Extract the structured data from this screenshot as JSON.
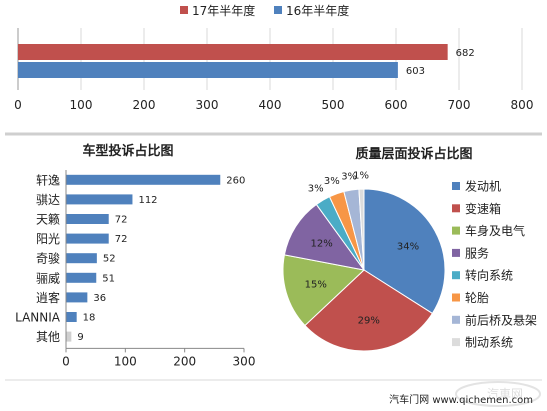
{
  "source_text": "汽车门网 www.qichemen.com",
  "watermark_text": "汽車网",
  "chart_data": [
    {
      "type": "bar",
      "orientation": "horizontal",
      "title": "",
      "categories": [
        ""
      ],
      "series": [
        {
          "name": "17年半年度",
          "values": [
            682
          ],
          "color": "#c0504d"
        },
        {
          "name": "16年半年度",
          "values": [
            603
          ],
          "color": "#4f81bd"
        }
      ],
      "xlim": [
        0,
        800
      ],
      "xticks": [
        0,
        100,
        200,
        300,
        400,
        500,
        600,
        700,
        800
      ],
      "legend": "top",
      "grid": true
    },
    {
      "type": "bar",
      "orientation": "horizontal",
      "title": "车型投诉占比图",
      "categories": [
        "轩逸",
        "骐达",
        "天籁",
        "阳光",
        "奇骏",
        "骊威",
        "逍客",
        "LANNIA",
        "其他"
      ],
      "values": [
        260,
        112,
        72,
        72,
        52,
        51,
        36,
        18,
        9
      ],
      "color": "#4f81bd",
      "xlim": [
        0,
        300
      ],
      "xticks": [
        0,
        100,
        200,
        300
      ],
      "grid": false
    },
    {
      "type": "pie",
      "title": "质量层面投诉占比图",
      "slices": [
        {
          "label": "发动机",
          "value": 34,
          "display": "34%",
          "color": "#4f81bd"
        },
        {
          "label": "变速箱",
          "value": 29,
          "display": "29%",
          "color": "#c0504d"
        },
        {
          "label": "车身及电气",
          "value": 15,
          "display": "15%",
          "color": "#9bbb59"
        },
        {
          "label": "服务",
          "value": 12,
          "display": "12%",
          "color": "#8064a2"
        },
        {
          "label": "转向系统",
          "value": 3,
          "display": "3%",
          "color": "#4bacc6"
        },
        {
          "label": "轮胎",
          "value": 3,
          "display": "3%",
          "color": "#f79646"
        },
        {
          "label": "前后桥及悬架",
          "value": 3,
          "display": "3%",
          "color": "#a5b6d6"
        },
        {
          "label": "制动系统",
          "value": 1,
          "display": "1%",
          "color": "#dcdcdc"
        }
      ],
      "legend": "right"
    }
  ]
}
